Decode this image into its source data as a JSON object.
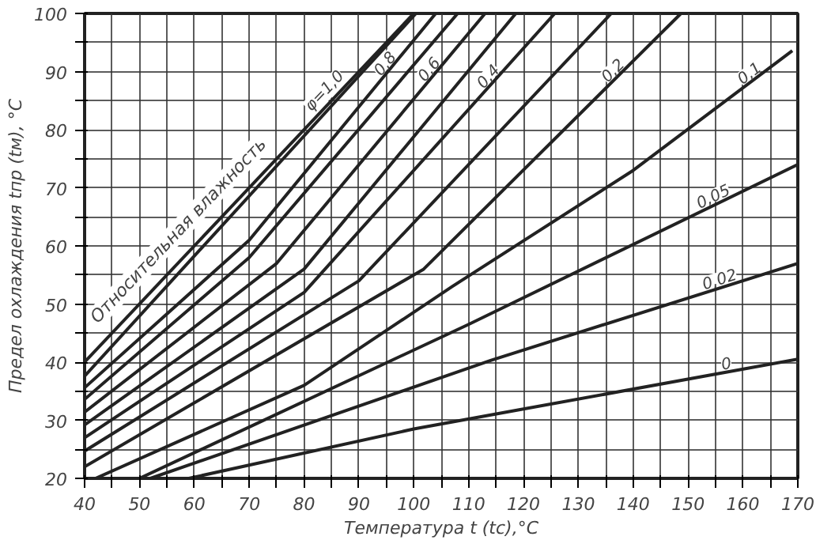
{
  "chart_data": {
    "type": "line",
    "xlabel": "Температура t (tc),°C",
    "ylabel": "Предел охлаждения tпр (tм), °C",
    "xlim": [
      40,
      170
    ],
    "ylim": [
      20,
      100
    ],
    "xticks": [
      40,
      {
        "value": 45,
        "label": null
      },
      50,
      {
        "value": 55,
        "label": null
      },
      60,
      {
        "value": 65,
        "label": null
      },
      70,
      {
        "value": 75,
        "label": null
      },
      80,
      {
        "value": 85,
        "label": null
      },
      90,
      {
        "value": 95,
        "label": null
      },
      100,
      {
        "value": 105,
        "label": null
      },
      110,
      {
        "value": 115,
        "label": null
      },
      120,
      {
        "value": 125,
        "label": null
      },
      130,
      {
        "value": 135,
        "label": null
      },
      140,
      {
        "value": 145,
        "label": null
      },
      150,
      {
        "value": 155,
        "label": null
      },
      160,
      {
        "value": 165,
        "label": null
      },
      170
    ],
    "yticks": [
      20,
      {
        "value": 25,
        "label": null
      },
      30,
      {
        "value": 35,
        "label": null
      },
      40,
      {
        "value": 45,
        "label": null
      },
      50,
      {
        "value": 55,
        "label": null
      },
      60,
      {
        "value": 65,
        "label": null
      },
      70,
      {
        "value": 75,
        "label": null
      },
      80,
      {
        "value": 85,
        "label": null
      },
      90,
      {
        "value": 95,
        "label": null
      },
      100
    ],
    "grid": true,
    "marker": "none",
    "line_style": "solid",
    "annotations": [
      "Относительная влажность"
    ],
    "series": [
      {
        "name": "φ=1,0",
        "color": "#222222",
        "x": [
          40,
          100
        ],
        "values": [
          40,
          100
        ]
      },
      {
        "color": "#222222",
        "x": [
          40,
          100.4
        ],
        "values": [
          37.6,
          100
        ]
      },
      {
        "name": "0,8",
        "color": "#222222",
        "x": [
          40,
          70,
          104
        ],
        "values": [
          35.6,
          61,
          100
        ]
      },
      {
        "color": "#222222",
        "x": [
          40,
          70,
          108
        ],
        "values": [
          33.6,
          58,
          100
        ]
      },
      {
        "name": "0,6",
        "color": "#222222",
        "x": [
          40,
          75,
          113
        ],
        "values": [
          31.4,
          57,
          100
        ]
      },
      {
        "color": "#222222",
        "x": [
          40,
          80,
          118.6
        ],
        "values": [
          29.2,
          56,
          100
        ]
      },
      {
        "name": "0,4",
        "color": "#222222",
        "x": [
          40,
          80,
          125.7
        ],
        "values": [
          27,
          52,
          100
        ]
      },
      {
        "color": "#222222",
        "x": [
          40,
          90,
          136
        ],
        "values": [
          24.7,
          54,
          100
        ]
      },
      {
        "name": "0,2",
        "color": "#222222",
        "x": [
          40,
          101.8,
          148.7
        ],
        "values": [
          22,
          56,
          100
        ]
      },
      {
        "name": "0,1",
        "color": "#222222",
        "x": [
          42,
          80,
          107,
          140,
          169
        ],
        "values": [
          20,
          36,
          53,
          73,
          93.6
        ]
      },
      {
        "name": "0,05",
        "color": "#222222",
        "x": [
          50,
          110,
          170
        ],
        "values": [
          20,
          46.5,
          74
        ]
      },
      {
        "name": "0,02",
        "color": "#222222",
        "x": [
          52,
          114,
          170
        ],
        "values": [
          20,
          40.3,
          57
        ]
      },
      {
        "name": "0",
        "color": "#222222",
        "x": [
          59,
          100,
          118.6,
          170
        ],
        "values": [
          20,
          28.5,
          31.7,
          40.5
        ]
      }
    ]
  }
}
